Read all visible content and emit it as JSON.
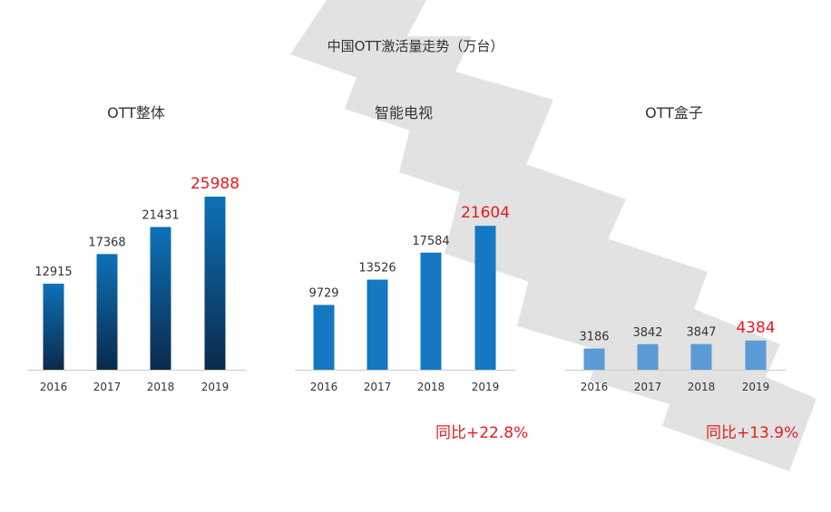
{
  "title": "中国OTT激活量走势（万台）",
  "colors": {
    "highlight_label": "#e8191c",
    "label": "#333333",
    "axis": "#cccccc",
    "watermark": "#bfbfbf"
  },
  "chart_data": [
    {
      "type": "bar",
      "title": "OTT整体",
      "categories": [
        "2016",
        "2017",
        "2018",
        "2019"
      ],
      "values": [
        12915,
        17368,
        21431,
        25988
      ],
      "highlight_index": 3,
      "fill": "gradient-dark-navy",
      "ylim": [
        0,
        30000
      ]
    },
    {
      "type": "bar",
      "title": "智能电视",
      "categories": [
        "2016",
        "2017",
        "2018",
        "2019"
      ],
      "values": [
        9729,
        13526,
        17584,
        21604
      ],
      "highlight_index": 3,
      "fill": "#1578c3",
      "ylim": [
        0,
        30000
      ],
      "annotation": "同比+22.8%"
    },
    {
      "type": "bar",
      "title": "OTT盒子",
      "categories": [
        "2016",
        "2017",
        "2018",
        "2019"
      ],
      "values": [
        3186,
        3842,
        3847,
        4384
      ],
      "highlight_index": 3,
      "fill": "#5b9bd5",
      "ylim": [
        0,
        30000
      ],
      "annotation": "同比+13.9%"
    }
  ]
}
